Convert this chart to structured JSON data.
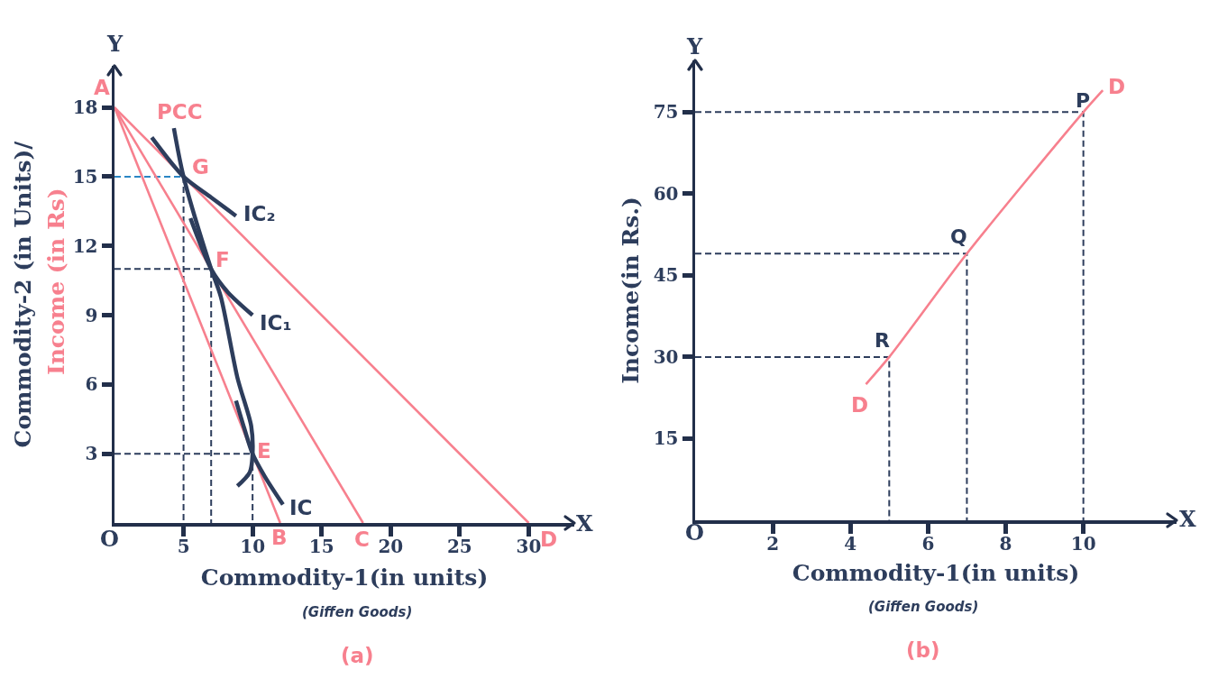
{
  "chart_data": [
    {
      "type": "line",
      "xlabel": "Commodity-1(in units)",
      "ylabel": "Commodity-2 (in Units)/",
      "xlim": [
        0,
        33.3
      ],
      "ylim": [
        0,
        19.8
      ],
      "xticks": [
        5,
        10,
        15,
        20,
        25,
        30
      ],
      "yticks": [
        3,
        6,
        9,
        12,
        15,
        18
      ],
      "series": [
        {
          "color": "#2a86c4",
          "line_style": "dashed",
          "x": [
            0,
            5
          ],
          "values": [
            15,
            15
          ]
        },
        {
          "color": "#2d3d5c",
          "line_style": "dashed",
          "x": [
            5,
            5
          ],
          "values": [
            15,
            0
          ]
        },
        {
          "color": "#2d3d5c",
          "line_style": "dashed",
          "x": [
            0,
            7,
            7
          ],
          "values": [
            11,
            11,
            0
          ]
        },
        {
          "color": "#2d3d5c",
          "line_style": "dashed",
          "x": [
            0,
            10,
            10
          ],
          "values": [
            3,
            3,
            0
          ]
        },
        {
          "color": "#f7808e",
          "x": [
            0,
            12
          ],
          "values": [
            18,
            0
          ]
        },
        {
          "color": "#f7808e",
          "x": [
            0,
            18
          ],
          "values": [
            18,
            0
          ]
        },
        {
          "color": "#f7808e",
          "x": [
            0,
            30
          ],
          "values": [
            18,
            0
          ]
        },
        {
          "color": "#2d3d5c",
          "x": [
            4.3,
            5,
            7,
            7.7,
            8.9,
            9.9,
            10,
            9.8,
            8.9
          ],
          "values": [
            17.1,
            15,
            11,
            9.8,
            6.3,
            4.2,
            3,
            2.2,
            1.6
          ]
        },
        {
          "color": "#2d3d5c",
          "x": [
            2.7,
            5,
            7,
            8.8
          ],
          "values": [
            16.7,
            15,
            14.1,
            13.3
          ]
        },
        {
          "color": "#2d3d5c",
          "x": [
            5.5,
            7,
            8.2,
            10
          ],
          "values": [
            13.2,
            11,
            10,
            9
          ]
        },
        {
          "color": "#2d3d5c",
          "x": [
            8.8,
            9.4,
            10,
            10.9,
            12.2
          ],
          "values": [
            5.3,
            4.1,
            3,
            2,
            0.8
          ]
        }
      ],
      "annotations": [
        "O",
        "Y",
        "X",
        "Income (in Rs)",
        "(Giffen Goods)",
        "(a)",
        {
          "text": "A",
          "x": 0,
          "y": 18
        },
        {
          "text": "PCC",
          "x": 4.3,
          "y": 17.1
        },
        {
          "text": "G",
          "x": 5,
          "y": 15
        },
        {
          "text": "F",
          "x": 7,
          "y": 11
        },
        {
          "text": "E",
          "x": 10,
          "y": 3
        },
        {
          "text": "B",
          "x": 12,
          "y": 0
        },
        {
          "text": "C",
          "x": 18,
          "y": 0
        },
        {
          "text": "D",
          "x": 30,
          "y": 0
        },
        {
          "text": "IC₂",
          "x": 8.8,
          "y": 13.3
        },
        {
          "text": "IC₁",
          "x": 10,
          "y": 9
        },
        {
          "text": "IC",
          "x": 12.2,
          "y": 0.8
        }
      ]
    },
    {
      "type": "line",
      "xlabel": "Commodity-1(in units)",
      "ylabel": "Income(in Rs.)",
      "xlim": [
        0,
        12.4
      ],
      "ylim": [
        0,
        84.5
      ],
      "xticks": [
        2,
        4,
        6,
        8,
        10
      ],
      "yticks": [
        15,
        30,
        45,
        60,
        75
      ],
      "series": [
        {
          "color": "#2d3d5c",
          "line_style": "dashed",
          "x": [
            0,
            5,
            5
          ],
          "values": [
            30,
            30,
            0
          ]
        },
        {
          "color": "#2d3d5c",
          "line_style": "dashed",
          "x": [
            0,
            7,
            7
          ],
          "values": [
            49,
            49,
            0
          ]
        },
        {
          "color": "#2d3d5c",
          "line_style": "dashed",
          "x": [
            0,
            10,
            10
          ],
          "values": [
            75,
            75,
            0
          ]
        },
        {
          "color": "#f7808e",
          "x": [
            4.4,
            5,
            7,
            10,
            10.5
          ],
          "values": [
            25,
            30,
            49,
            75,
            79
          ]
        }
      ],
      "annotations": [
        "O",
        "Y",
        "X",
        "(Giffen Goods)",
        "(b)",
        {
          "text": "P",
          "x": 10,
          "y": 75
        },
        {
          "text": "Q",
          "x": 7,
          "y": 49
        },
        {
          "text": "R",
          "x": 5,
          "y": 30
        },
        {
          "text": "D",
          "x": 10.5,
          "y": 79
        },
        {
          "text": "D",
          "x": 4.4,
          "y": 25
        }
      ]
    }
  ]
}
